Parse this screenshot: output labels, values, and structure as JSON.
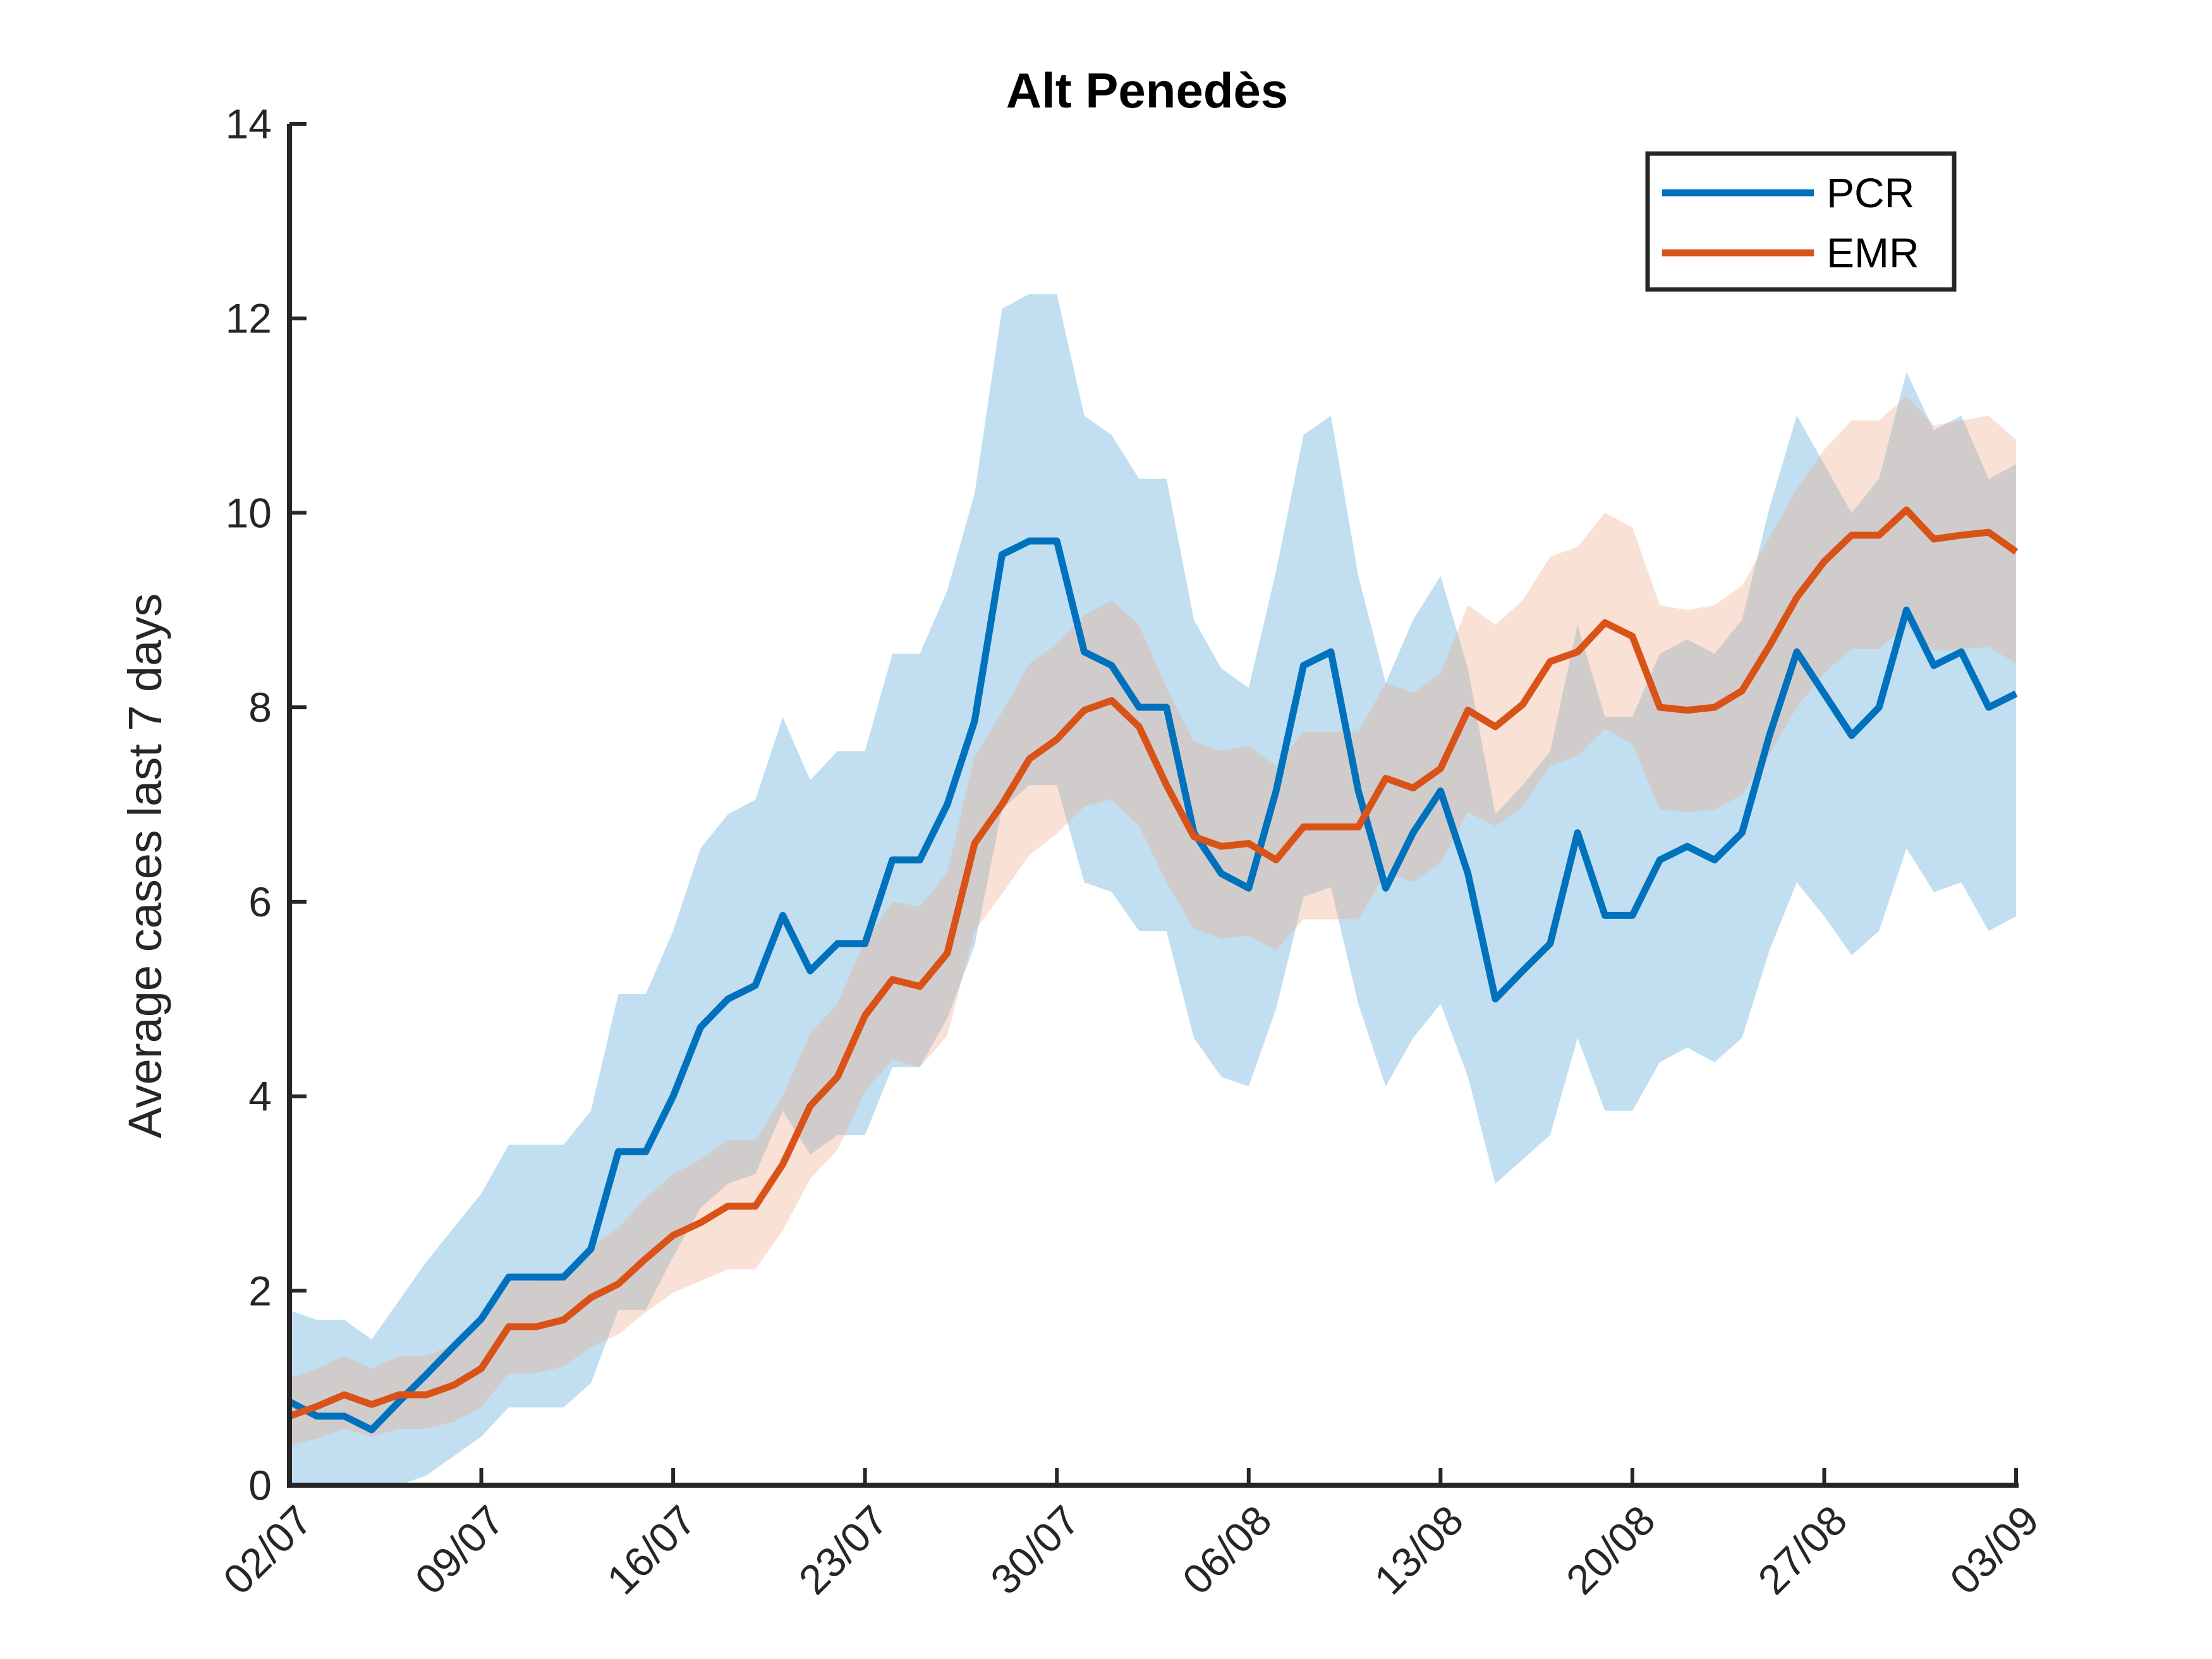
{
  "chart_data": {
    "type": "line",
    "title": "Alt Penedès",
    "xlabel": "",
    "ylabel": "Average cases last 7 days",
    "ylim": [
      0,
      14
    ],
    "yticks": [
      "0",
      "2",
      "4",
      "6",
      "8",
      "10",
      "12",
      "14"
    ],
    "xtick_labels": [
      "02/07",
      "09/07",
      "16/07",
      "23/07",
      "30/07",
      "06/08",
      "13/08",
      "20/08",
      "27/08",
      "03/09"
    ],
    "x_start_label": "02/07",
    "x_end_label": "03/09",
    "legend_position": "top-right",
    "grid": false,
    "series": [
      {
        "name": "PCR",
        "color": "#0072BD",
        "band_color": "#4DA3D8",
        "values": [
          0.86,
          0.71,
          0.71,
          0.57,
          0.86,
          1.14,
          1.43,
          1.71,
          2.14,
          2.14,
          2.14,
          2.43,
          3.43,
          3.43,
          4.0,
          4.71,
          5.0,
          5.14,
          5.86,
          5.29,
          5.57,
          5.57,
          6.43,
          6.43,
          7.0,
          7.86,
          9.57,
          9.71,
          9.71,
          8.57,
          8.43,
          8.0,
          8.0,
          6.71,
          6.29,
          6.14,
          7.14,
          8.43,
          8.57,
          7.14,
          6.14,
          6.71,
          7.14,
          6.29,
          5.0,
          5.29,
          5.57,
          6.71,
          5.86,
          5.86,
          6.43,
          6.57,
          6.43,
          6.71,
          7.71,
          8.57,
          8.14,
          7.71,
          8.0,
          9.0,
          8.43,
          8.57,
          8.0,
          8.14
        ],
        "upper": [
          1.8,
          1.7,
          1.7,
          1.5,
          1.9,
          2.3,
          2.65,
          3.0,
          3.5,
          3.5,
          3.5,
          3.85,
          5.05,
          5.05,
          5.7,
          6.55,
          6.9,
          7.05,
          7.9,
          7.25,
          7.55,
          7.55,
          8.55,
          8.55,
          9.2,
          10.2,
          12.1,
          12.25,
          12.25,
          11.0,
          10.8,
          10.35,
          10.35,
          8.9,
          8.4,
          8.2,
          9.4,
          10.8,
          11.0,
          9.35,
          8.25,
          8.9,
          9.35,
          8.4,
          6.9,
          7.2,
          7.55,
          8.85,
          7.9,
          7.9,
          8.55,
          8.7,
          8.55,
          8.9,
          10.05,
          11.0,
          10.5,
          10.0,
          10.35,
          11.45,
          10.85,
          11.0,
          10.35,
          10.5
        ],
        "lower": [
          0.0,
          0.0,
          0.0,
          0.0,
          0.0,
          0.1,
          0.3,
          0.5,
          0.8,
          0.8,
          0.8,
          1.05,
          1.8,
          1.8,
          2.35,
          2.85,
          3.1,
          3.2,
          3.85,
          3.4,
          3.6,
          3.6,
          4.3,
          4.3,
          4.8,
          5.55,
          6.95,
          7.2,
          7.2,
          6.2,
          6.1,
          5.7,
          5.7,
          4.6,
          4.2,
          4.1,
          4.9,
          6.05,
          6.15,
          4.95,
          4.1,
          4.6,
          4.95,
          4.2,
          3.1,
          3.35,
          3.6,
          4.6,
          3.85,
          3.85,
          4.35,
          4.5,
          4.35,
          4.6,
          5.5,
          6.2,
          5.85,
          5.45,
          5.7,
          6.55,
          6.1,
          6.2,
          5.7,
          5.85
        ]
      },
      {
        "name": "EMR",
        "color": "#D95319",
        "band_color": "#F0A887",
        "values": [
          0.71,
          0.81,
          0.93,
          0.83,
          0.93,
          0.93,
          1.03,
          1.2,
          1.63,
          1.63,
          1.7,
          1.93,
          2.07,
          2.33,
          2.57,
          2.7,
          2.87,
          2.87,
          3.3,
          3.9,
          4.2,
          4.83,
          5.2,
          5.13,
          5.47,
          6.6,
          7.0,
          7.47,
          7.67,
          7.97,
          8.07,
          7.8,
          7.2,
          6.67,
          6.57,
          6.6,
          6.43,
          6.77,
          6.77,
          6.77,
          7.27,
          7.17,
          7.37,
          7.97,
          7.8,
          8.03,
          8.47,
          8.57,
          8.87,
          8.73,
          8.0,
          7.97,
          8.0,
          8.17,
          8.63,
          9.13,
          9.5,
          9.77,
          9.77,
          10.03,
          9.73,
          9.77,
          9.8,
          9.6
        ],
        "upper": [
          1.1,
          1.2,
          1.33,
          1.2,
          1.33,
          1.33,
          1.45,
          1.65,
          2.1,
          2.1,
          2.2,
          2.45,
          2.65,
          2.95,
          3.2,
          3.35,
          3.55,
          3.55,
          4.0,
          4.65,
          4.95,
          5.6,
          6.0,
          5.95,
          6.3,
          7.5,
          7.95,
          8.45,
          8.65,
          8.95,
          9.1,
          8.85,
          8.2,
          7.65,
          7.55,
          7.6,
          7.4,
          7.75,
          7.75,
          7.75,
          8.25,
          8.15,
          8.35,
          9.05,
          8.85,
          9.1,
          9.55,
          9.65,
          10.0,
          9.85,
          9.05,
          9.0,
          9.05,
          9.25,
          9.75,
          10.25,
          10.65,
          10.95,
          10.95,
          11.2,
          10.9,
          10.95,
          11.0,
          10.75
        ],
        "lower": [
          0.4,
          0.48,
          0.58,
          0.5,
          0.58,
          0.58,
          0.65,
          0.8,
          1.15,
          1.15,
          1.22,
          1.42,
          1.55,
          1.78,
          1.98,
          2.1,
          2.22,
          2.22,
          2.62,
          3.15,
          3.45,
          4.05,
          4.38,
          4.3,
          4.62,
          5.7,
          6.08,
          6.48,
          6.7,
          6.98,
          7.05,
          6.78,
          6.2,
          5.72,
          5.62,
          5.65,
          5.5,
          5.82,
          5.82,
          5.82,
          6.3,
          6.2,
          6.4,
          6.92,
          6.78,
          6.98,
          7.4,
          7.5,
          7.78,
          7.62,
          6.95,
          6.92,
          6.95,
          7.1,
          7.52,
          8.0,
          8.35,
          8.6,
          8.6,
          8.85,
          8.58,
          8.6,
          8.62,
          8.45
        ]
      }
    ]
  }
}
